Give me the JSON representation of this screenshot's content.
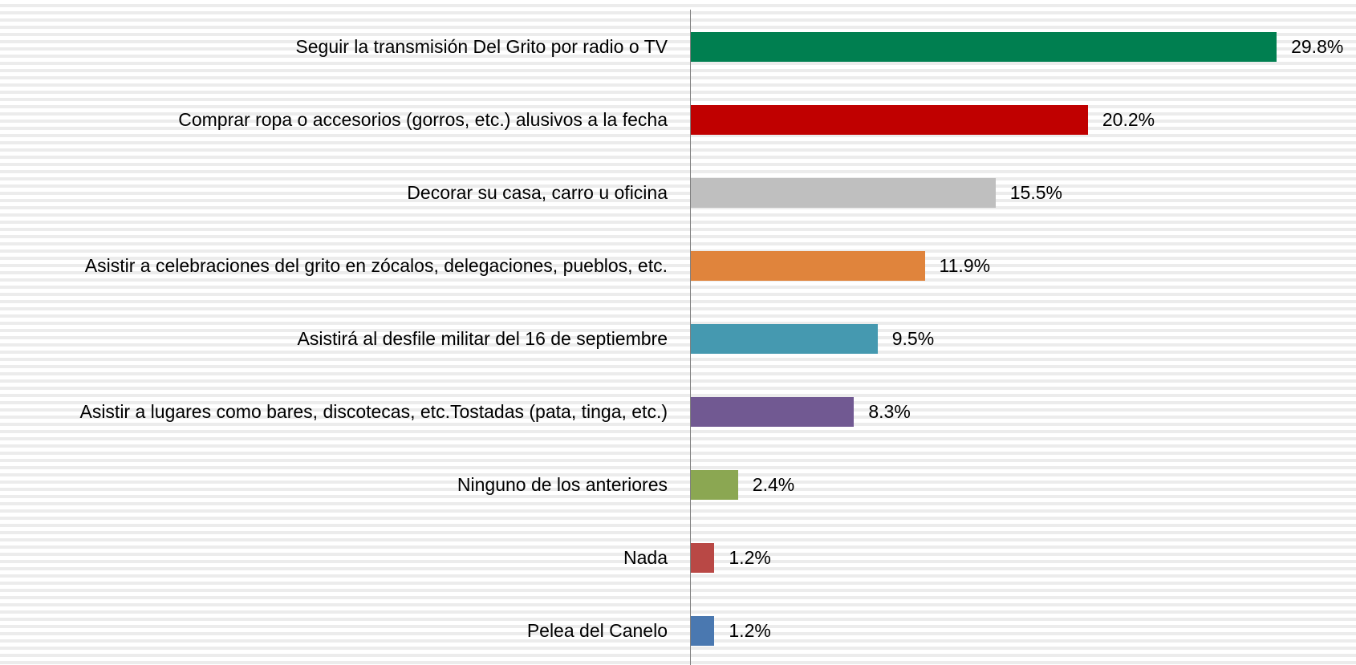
{
  "chart_data": {
    "type": "bar",
    "orientation": "horizontal",
    "categories": [
      "Seguir la transmisión Del Grito por radio o TV",
      "Comprar ropa o accesorios (gorros, etc.) alusivos a la fecha",
      "Decorar su casa, carro u oficina",
      "Asistir a celebraciones del grito en zócalos, delegaciones, pueblos, etc.",
      "Asistirá al desfile militar del 16 de septiembre",
      "Asistir a lugares como bares, discotecas, etc.Tostadas (pata, tinga, etc.)",
      "Ninguno de los anteriores",
      "Nada",
      "Pelea del Canelo"
    ],
    "values": [
      29.8,
      20.2,
      15.5,
      11.9,
      9.5,
      8.3,
      2.4,
      1.2,
      1.2
    ],
    "value_labels": [
      "29.8%",
      "20.2%",
      "15.5%",
      "11.9%",
      "9.5%",
      "8.3%",
      "2.4%",
      "1.2%",
      "1.2%"
    ],
    "colors": [
      "#007f50",
      "#c00000",
      "#bfbfbf",
      "#e0843c",
      "#4599b0",
      "#715992",
      "#8ba752",
      "#b94845",
      "#4a78b0"
    ]
  }
}
